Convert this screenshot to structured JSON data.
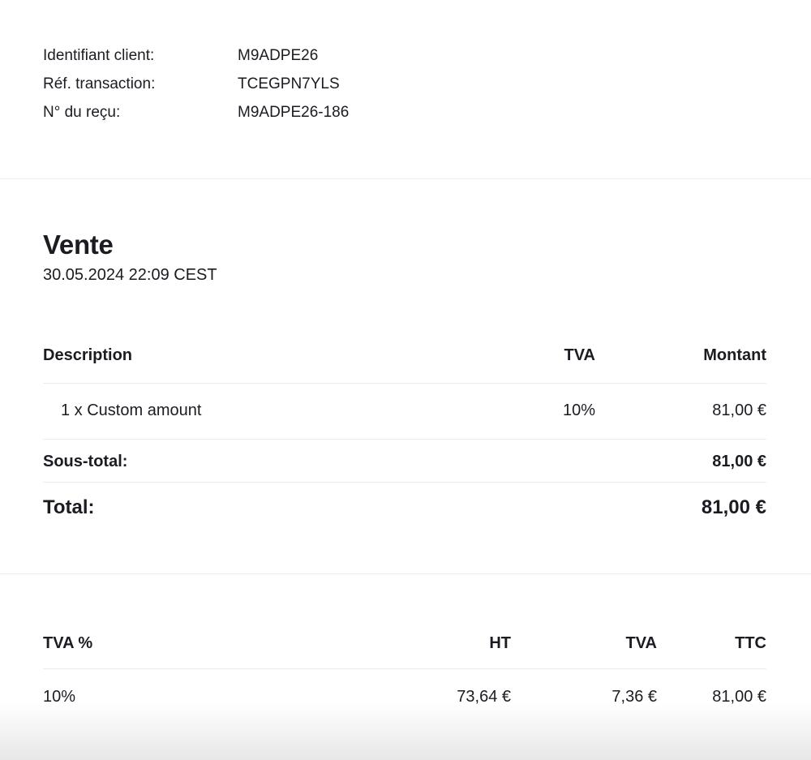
{
  "page": {
    "background": "#ffffff",
    "text_color": "#1a1c21",
    "divider_color": "#ebebeb"
  },
  "client_info": {
    "rows": [
      {
        "label": "Identifiant client:",
        "value": "M9ADPE26"
      },
      {
        "label": "Réf. transaction:",
        "value": "TCEGPN7YLS"
      },
      {
        "label": "N° du reçu:",
        "value": "M9ADPE26-186"
      }
    ]
  },
  "sale": {
    "title": "Vente",
    "datetime": "30.05.2024 22:09 CEST"
  },
  "items_table": {
    "headers": {
      "description": "Description",
      "tva": "TVA",
      "montant": "Montant"
    },
    "rows": [
      {
        "description": "1 x Custom amount",
        "tva": "10%",
        "montant": "81,00 €"
      }
    ],
    "subtotal": {
      "label": "Sous-total:",
      "value": "81,00 €"
    },
    "total": {
      "label": "Total:",
      "value": "81,00 €"
    }
  },
  "tax_table": {
    "headers": {
      "rate": "TVA %",
      "ht": "HT",
      "tva": "TVA",
      "ttc": "TTC"
    },
    "rows": [
      {
        "rate": "10%",
        "ht": "73,64 €",
        "tva": "7,36 €",
        "ttc": "81,00 €"
      }
    ]
  }
}
